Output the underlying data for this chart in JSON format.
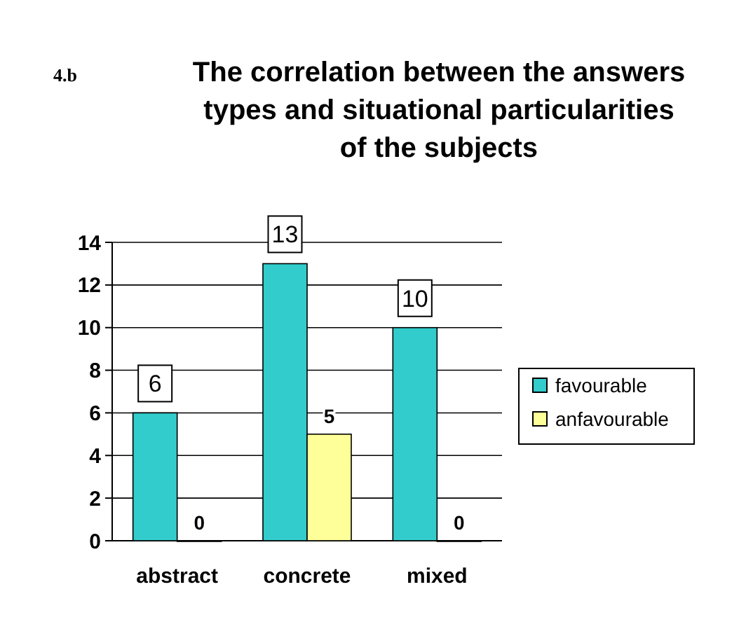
{
  "chart_data": {
    "type": "bar",
    "title": "The correlation between the answers types and situational particularities of the subjects",
    "annotations": [
      "4.b"
    ],
    "categories": [
      "abstract",
      "concrete",
      "mixed"
    ],
    "series": [
      {
        "name": "favourable",
        "color": "#33cccc",
        "values": [
          6,
          13,
          10
        ]
      },
      {
        "name": "anfavourable",
        "color": "#ffff99",
        "values": [
          0,
          5,
          0
        ]
      }
    ],
    "ylim": [
      0,
      14
    ],
    "yticks": [
      0,
      2,
      4,
      6,
      8,
      10,
      12,
      14
    ],
    "grid": "y",
    "legend": "right",
    "data_labels": true
  }
}
